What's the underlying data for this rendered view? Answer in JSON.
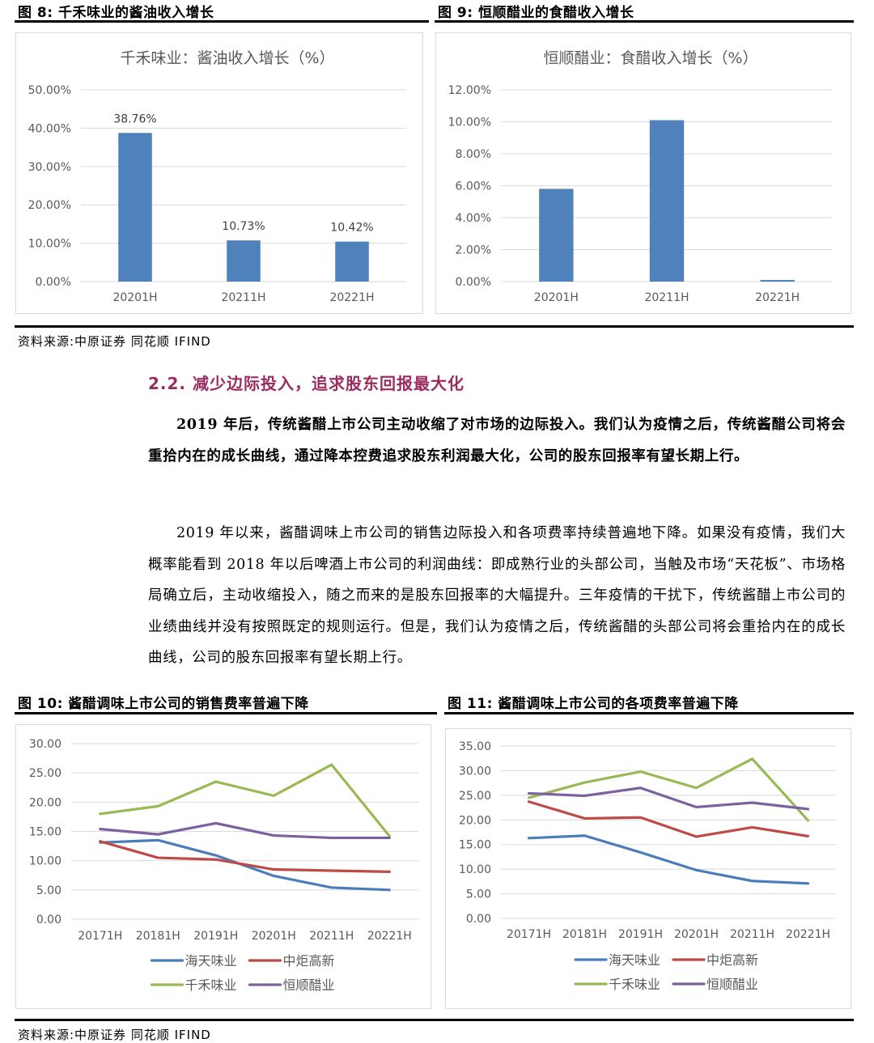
{
  "figures": {
    "fig8_title": "图 8:   千禾味业的酱油收入增长",
    "fig9_title": "图 9:   恒顺醋业的食醋收入增长",
    "fig10_title": "图 10:   酱醋调味上市公司的销售费率普遍下降",
    "fig11_title": "图 11:   酱醋调味上市公司的各项费率普遍下降"
  },
  "sources": {
    "top": "资料来源:中原证券 同花顺 IFIND",
    "bottom": "资料来源:中原证券 同花顺 IFIND"
  },
  "section": {
    "heading": "2.2. 减少边际投入，追求股东回报最大化",
    "para1": "2019 年后，传统酱醋上市公司主动收缩了对市场的边际投入。我们认为疫情之后，传统酱醋公司将会重拾内在的成长曲线，通过降本控费追求股东利润最大化，公司的股东回报率有望长期上行。",
    "para2": "2019 年以来，酱醋调味上市公司的销售边际投入和各项费率持续普遍地下降。如果没有疫情，我们大概率能看到 2018 年以后啤酒上市公司的利润曲线：即成熟行业的头部公司，当触及市场“天花板”、市场格局确立后，主动收缩投入，随之而来的是股东回报率的大幅提升。三年疫情的干扰下，传统酱醋上市公司的业绩曲线并没有按照既定的规则运行。但是，我们认为疫情之后，传统酱醋的头部公司将会重拾内在的成长曲线，公司的股东回报率有望长期上行。"
  },
  "colors": {
    "bar": "#4f81bd",
    "haitian": "#4a7ebb",
    "zhongju": "#be4b48",
    "qianhe": "#98b954",
    "hengshun": "#7d60a0",
    "grid": "#d9d9d9",
    "axis_text": "#595959",
    "section_heading": "#9b2b5f"
  },
  "chart_data": [
    {
      "id": "fig8",
      "type": "bar",
      "title": "千禾味业：酱油收入增长（%）",
      "categories": [
        "20201H",
        "20211H",
        "20221H"
      ],
      "values": [
        38.76,
        10.73,
        10.42
      ],
      "data_labels": [
        "38.76%",
        "10.73%",
        "10.42%"
      ],
      "ylim": [
        0,
        50
      ],
      "yticks": [
        0,
        10,
        20,
        30,
        40,
        50
      ],
      "ytick_labels": [
        "0.00%",
        "10.00%",
        "20.00%",
        "30.00%",
        "40.00%",
        "50.00%"
      ],
      "grid": true
    },
    {
      "id": "fig9",
      "type": "bar",
      "title": "恒顺醋业：食醋收入增长（%）",
      "categories": [
        "20201H",
        "20211H",
        "20221H"
      ],
      "values": [
        5.8,
        10.1,
        0.1
      ],
      "data_labels": [],
      "ylim": [
        0,
        12
      ],
      "yticks": [
        0,
        2,
        4,
        6,
        8,
        10,
        12
      ],
      "ytick_labels": [
        "0.00%",
        "2.00%",
        "4.00%",
        "6.00%",
        "8.00%",
        "10.00%",
        "12.00%"
      ],
      "grid": true
    },
    {
      "id": "fig10",
      "type": "line",
      "categories": [
        "20171H",
        "20181H",
        "20191H",
        "20201H",
        "20211H",
        "20221H"
      ],
      "ylim": [
        0,
        30
      ],
      "yticks": [
        0,
        5,
        10,
        15,
        20,
        25,
        30
      ],
      "ytick_labels": [
        "0.00",
        "5.00",
        "10.00",
        "15.00",
        "20.00",
        "25.00",
        "30.00"
      ],
      "grid": true,
      "legend_position": "bottom",
      "series": [
        {
          "name": "海天味业",
          "values": [
            13.1,
            13.5,
            10.9,
            7.4,
            5.4,
            5.0
          ]
        },
        {
          "name": "中炬高新",
          "values": [
            13.3,
            10.5,
            10.2,
            8.5,
            8.3,
            8.1
          ]
        },
        {
          "name": "千禾味业",
          "values": [
            18.0,
            19.3,
            23.5,
            21.1,
            26.4,
            14.2
          ]
        },
        {
          "name": "恒顺醋业",
          "values": [
            15.4,
            14.5,
            16.4,
            14.3,
            13.9,
            13.9
          ]
        }
      ]
    },
    {
      "id": "fig11",
      "type": "line",
      "categories": [
        "20171H",
        "20181H",
        "20191H",
        "20201H",
        "20211H",
        "20221H"
      ],
      "ylim": [
        0,
        35
      ],
      "yticks": [
        0,
        5,
        10,
        15,
        20,
        25,
        30,
        35
      ],
      "ytick_labels": [
        "0.00",
        "5.00",
        "10.00",
        "15.00",
        "20.00",
        "25.00",
        "30.00",
        "35.00"
      ],
      "grid": true,
      "legend_position": "bottom",
      "series": [
        {
          "name": "海天味业",
          "values": [
            16.3,
            16.8,
            13.4,
            9.8,
            7.6,
            7.1
          ]
        },
        {
          "name": "中炬高新",
          "values": [
            23.7,
            20.3,
            20.5,
            16.6,
            18.5,
            16.7
          ]
        },
        {
          "name": "千禾味业",
          "values": [
            24.5,
            27.6,
            29.8,
            26.5,
            32.4,
            19.9
          ]
        },
        {
          "name": "恒顺醋业",
          "values": [
            25.4,
            24.9,
            26.5,
            22.6,
            23.5,
            22.2
          ]
        }
      ]
    }
  ]
}
